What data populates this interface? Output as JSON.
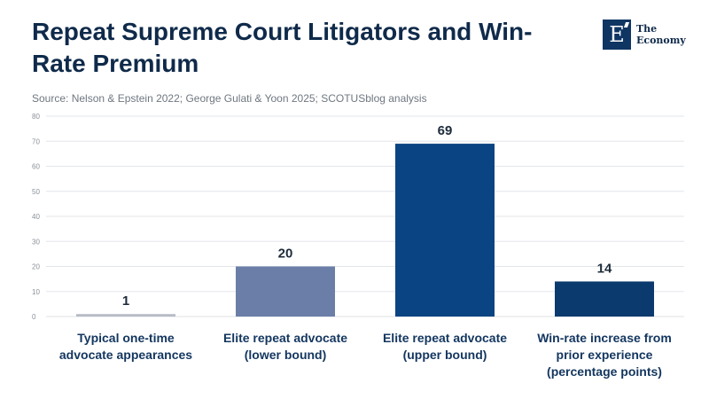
{
  "header": {
    "title": "Repeat Supreme Court Litigators and Win-Rate Premium",
    "source": "Source: Nelson & Epstein 2022; George Gulati & Yoon 2025; SCOTUSblog analysis"
  },
  "logo": {
    "mark": "E",
    "line1": "The",
    "line2": "Economy"
  },
  "colors": {
    "bars": [
      "#b7bcc5",
      "#6b7ea8",
      "#0b4482",
      "#0b3a6e"
    ],
    "grid": "#e3e6ea"
  },
  "chart_data": {
    "type": "bar",
    "title": "Repeat Supreme Court Litigators and Win-Rate Premium",
    "categories": [
      "Typical one-time advocate appearances",
      "Elite repeat advocate (lower bound)",
      "Elite repeat advocate (upper bound)",
      "Win-rate increase from prior experience (percentage points)"
    ],
    "category_lines": [
      [
        "Typical one-time",
        "advocate appearances"
      ],
      [
        "Elite repeat advocate",
        "(lower bound)"
      ],
      [
        "Elite repeat advocate",
        "(upper bound)"
      ],
      [
        "Win-rate increase from",
        "prior experience",
        "(percentage points)"
      ]
    ],
    "values": [
      1,
      20,
      69,
      14
    ],
    "value_labels": [
      "1",
      "20",
      "69",
      "14"
    ],
    "ylim": [
      0,
      80
    ],
    "yticks": [
      0,
      10,
      20,
      30,
      40,
      50,
      60,
      70,
      80
    ],
    "ytick_labels": [
      "0",
      "10",
      "20",
      "30",
      "40",
      "50",
      "60",
      "70",
      "80"
    ],
    "xlabel": "",
    "ylabel": "",
    "grid": true
  }
}
